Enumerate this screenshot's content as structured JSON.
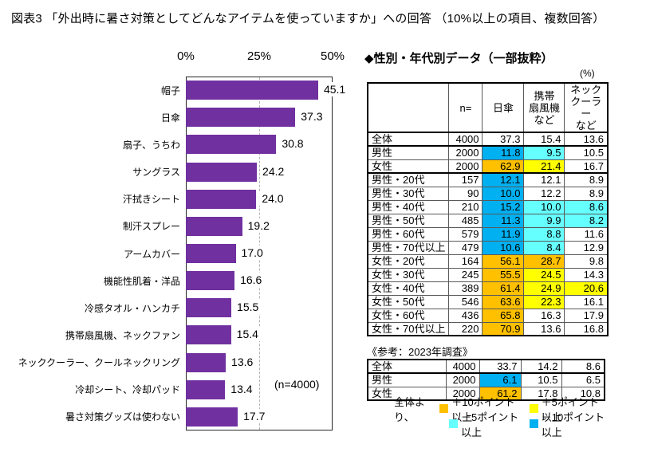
{
  "title": "図表3 「外出時に暑さ対策としてどんなアイテムを使っていますか」への回答 （10%以上の項目、複数回答）",
  "colors": {
    "bar": "#7030A0",
    "plus10": "#FFC000",
    "plus5": "#FFFF00",
    "minus5": "#66FFFF",
    "minus10": "#00B0F0"
  },
  "chart_data": {
    "type": "bar",
    "orientation": "horizontal",
    "title": "",
    "xlabel": "",
    "ylabel": "",
    "xlim": [
      0,
      50
    ],
    "x_ticks": [
      "0%",
      "25%",
      "50%"
    ],
    "grid": "dashed vertical line at 25%",
    "sample_note": "(n=4000)",
    "categories": [
      "帽子",
      "日傘",
      "扇子、うちわ",
      "サングラス",
      "汗拭きシート",
      "制汗スプレー",
      "アームカバー",
      "機能性肌着・洋品",
      "冷感タオル・ハンカチ",
      "携帯扇風機、ネックファン",
      "ネッククーラー、クールネックリング",
      "冷却シート、冷却パッド",
      "暑さ対策グッズは使わない"
    ],
    "values": [
      45.1,
      37.3,
      30.8,
      24.2,
      24.0,
      19.2,
      17.0,
      16.6,
      15.5,
      15.4,
      13.6,
      13.4,
      17.7
    ]
  },
  "table": {
    "title": "◆性別・年代別データ（一部抜粋）",
    "unit": "(%)",
    "columns": [
      "",
      "n=",
      "日傘",
      "携帯\n扇風機\nなど",
      "ネック\nクーラー\nなど"
    ],
    "rows": [
      {
        "label": "全体",
        "n": 4000,
        "cells": [
          {
            "v": 37.3,
            "hl": ""
          },
          {
            "v": 15.4,
            "hl": ""
          },
          {
            "v": 13.6,
            "hl": ""
          }
        ],
        "thick_bottom": true
      },
      {
        "label": "男性",
        "n": 2000,
        "cells": [
          {
            "v": 11.8,
            "hl": "minus10"
          },
          {
            "v": 9.5,
            "hl": "minus5"
          },
          {
            "v": 10.5,
            "hl": ""
          }
        ],
        "thick_bottom": false
      },
      {
        "label": "女性",
        "n": 2000,
        "cells": [
          {
            "v": 62.9,
            "hl": "plus10"
          },
          {
            "v": 21.4,
            "hl": "plus5"
          },
          {
            "v": 16.7,
            "hl": ""
          }
        ],
        "thick_bottom": true
      },
      {
        "label": "男性・20代",
        "n": 157,
        "cells": [
          {
            "v": 12.1,
            "hl": "minus10"
          },
          {
            "v": 12.1,
            "hl": ""
          },
          {
            "v": 8.9,
            "hl": ""
          }
        ],
        "thick_bottom": false
      },
      {
        "label": "男性・30代",
        "n": 90,
        "cells": [
          {
            "v": 10.0,
            "hl": "minus10"
          },
          {
            "v": 12.2,
            "hl": ""
          },
          {
            "v": 8.9,
            "hl": ""
          }
        ],
        "thick_bottom": false
      },
      {
        "label": "男性・40代",
        "n": 210,
        "cells": [
          {
            "v": 15.2,
            "hl": "minus10"
          },
          {
            "v": 10.0,
            "hl": "minus5"
          },
          {
            "v": 8.6,
            "hl": "minus5"
          }
        ],
        "thick_bottom": false
      },
      {
        "label": "男性・50代",
        "n": 485,
        "cells": [
          {
            "v": 11.3,
            "hl": "minus10"
          },
          {
            "v": 9.9,
            "hl": "minus5"
          },
          {
            "v": 8.2,
            "hl": "minus5"
          }
        ],
        "thick_bottom": false
      },
      {
        "label": "男性・60代",
        "n": 579,
        "cells": [
          {
            "v": 11.9,
            "hl": "minus10"
          },
          {
            "v": 8.8,
            "hl": "minus5"
          },
          {
            "v": 11.6,
            "hl": ""
          }
        ],
        "thick_bottom": false
      },
      {
        "label": "男性・70代以上",
        "n": 479,
        "cells": [
          {
            "v": 10.6,
            "hl": "minus10"
          },
          {
            "v": 8.4,
            "hl": "minus5"
          },
          {
            "v": 12.9,
            "hl": ""
          }
        ],
        "thick_bottom": false
      },
      {
        "label": "女性・20代",
        "n": 164,
        "cells": [
          {
            "v": 56.1,
            "hl": "plus10"
          },
          {
            "v": 28.7,
            "hl": "plus10"
          },
          {
            "v": 9.8,
            "hl": ""
          }
        ],
        "thick_bottom": false
      },
      {
        "label": "女性・30代",
        "n": 245,
        "cells": [
          {
            "v": 55.5,
            "hl": "plus10"
          },
          {
            "v": 24.5,
            "hl": "plus5"
          },
          {
            "v": 14.3,
            "hl": ""
          }
        ],
        "thick_bottom": false
      },
      {
        "label": "女性・40代",
        "n": 389,
        "cells": [
          {
            "v": 61.4,
            "hl": "plus10"
          },
          {
            "v": 24.9,
            "hl": "plus5"
          },
          {
            "v": 20.6,
            "hl": "plus5"
          }
        ],
        "thick_bottom": false
      },
      {
        "label": "女性・50代",
        "n": 546,
        "cells": [
          {
            "v": 63.6,
            "hl": "plus10"
          },
          {
            "v": 22.3,
            "hl": "plus5"
          },
          {
            "v": 16.1,
            "hl": ""
          }
        ],
        "thick_bottom": false
      },
      {
        "label": "女性・60代",
        "n": 436,
        "cells": [
          {
            "v": 65.8,
            "hl": "plus10"
          },
          {
            "v": 16.3,
            "hl": ""
          },
          {
            "v": 17.9,
            "hl": ""
          }
        ],
        "thick_bottom": false
      },
      {
        "label": "女性・70代以上",
        "n": 220,
        "cells": [
          {
            "v": 70.9,
            "hl": "plus10"
          },
          {
            "v": 13.6,
            "hl": ""
          },
          {
            "v": 16.8,
            "hl": ""
          }
        ],
        "thick_bottom": false
      }
    ]
  },
  "reference_table": {
    "caption": "《参考：2023年調査》",
    "rows": [
      {
        "label": "全体",
        "n": 4000,
        "cells": [
          {
            "v": 33.7,
            "hl": ""
          },
          {
            "v": 14.2,
            "hl": ""
          },
          {
            "v": 8.6,
            "hl": ""
          }
        ],
        "thick_bottom": true
      },
      {
        "label": "男性",
        "n": 2000,
        "cells": [
          {
            "v": 6.1,
            "hl": "minus10"
          },
          {
            "v": 10.5,
            "hl": ""
          },
          {
            "v": 6.5,
            "hl": ""
          }
        ],
        "thick_bottom": false
      },
      {
        "label": "女性",
        "n": 2000,
        "cells": [
          {
            "v": 61.2,
            "hl": "plus10"
          },
          {
            "v": 17.8,
            "hl": ""
          },
          {
            "v": 10.8,
            "hl": ""
          }
        ],
        "thick_bottom": false
      }
    ]
  },
  "legend": {
    "prefix": "全体より、",
    "items": [
      {
        "color_key": "plus10",
        "label": "＋10ポイント以上"
      },
      {
        "color_key": "plus5",
        "label": "＋5ポイント以上"
      },
      {
        "color_key": "minus5",
        "label": "－5ポイント以上"
      },
      {
        "color_key": "minus10",
        "label": "－10ポイント以上"
      }
    ]
  }
}
